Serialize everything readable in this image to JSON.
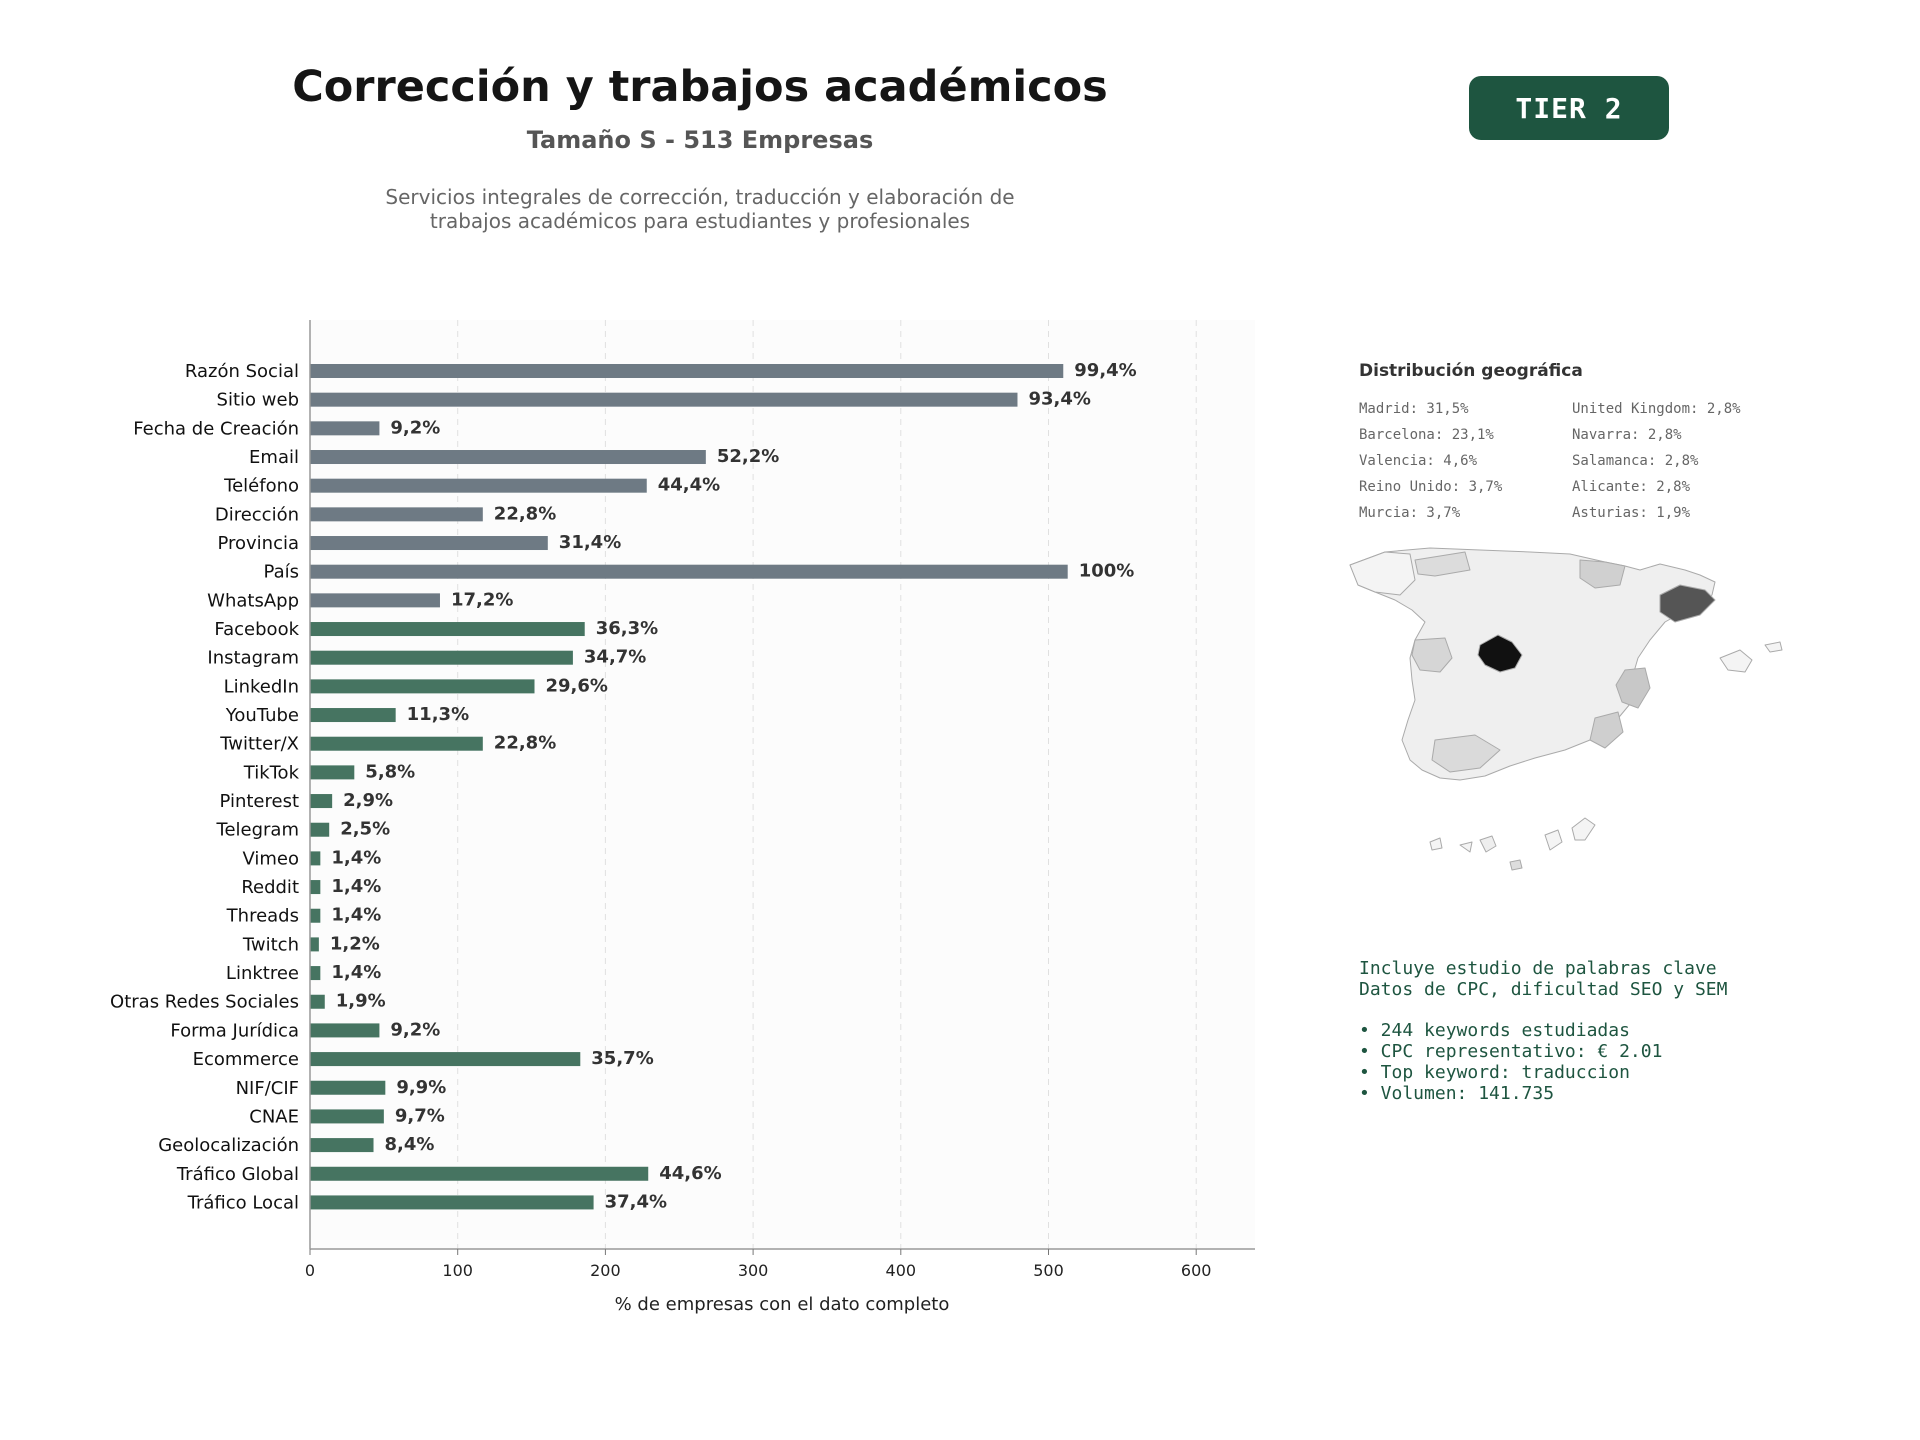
{
  "header": {
    "title": "Corrección y trabajos académicos",
    "subtitle": "Tamaño S - 513 Empresas",
    "description_line1": "Servicios integrales de corrección, traducción y elaboración de",
    "description_line2": "trabajos académicos para estudiantes y profesionales",
    "tier_label": "TIER 2"
  },
  "chart_data": {
    "type": "bar",
    "orientation": "horizontal",
    "xlabel": "% de empresas con el dato completo",
    "xlim": [
      0,
      640
    ],
    "xticks": [
      0,
      100,
      200,
      300,
      400,
      500,
      600
    ],
    "grid": "vertical dashed",
    "colors": {
      "contact": "#6e7a84",
      "digital": "#467461"
    },
    "categories": [
      "Razón Social",
      "Sitio web",
      "Fecha de Creación",
      "Email",
      "Teléfono",
      "Dirección",
      "Provincia",
      "País",
      "WhatsApp",
      "Facebook",
      "Instagram",
      "LinkedIn",
      "YouTube",
      "Twitter/X",
      "TikTok",
      "Pinterest",
      "Telegram",
      "Vimeo",
      "Reddit",
      "Threads",
      "Twitch",
      "Linktree",
      "Otras Redes Sociales",
      "Forma Jurídica",
      "Ecommerce",
      "NIF/CIF",
      "CNAE",
      "Geolocalización",
      "Tráfico Global",
      "Tráfico Local"
    ],
    "values": [
      510,
      479,
      47,
      268,
      228,
      117,
      161,
      513,
      88,
      186,
      178,
      152,
      58,
      117,
      30,
      15,
      13,
      7,
      7,
      7,
      6,
      7,
      10,
      47,
      183,
      51,
      50,
      43,
      229,
      192
    ],
    "labels": [
      "99,4%",
      "93,4%",
      "9,2%",
      "52,2%",
      "44,4%",
      "22,8%",
      "31,4%",
      "100%",
      "17,2%",
      "36,3%",
      "34,7%",
      "29,6%",
      "11,3%",
      "22,8%",
      "5,8%",
      "2,9%",
      "2,5%",
      "1,4%",
      "1,4%",
      "1,4%",
      "1,2%",
      "1,4%",
      "1,9%",
      "9,2%",
      "35,7%",
      "9,9%",
      "9,7%",
      "8,4%",
      "44,6%",
      "37,4%"
    ],
    "groups": [
      "contact",
      "contact",
      "contact",
      "contact",
      "contact",
      "contact",
      "contact",
      "contact",
      "contact",
      "digital",
      "digital",
      "digital",
      "digital",
      "digital",
      "digital",
      "digital",
      "digital",
      "digital",
      "digital",
      "digital",
      "digital",
      "digital",
      "digital",
      "digital",
      "digital",
      "digital",
      "digital",
      "digital",
      "digital",
      "digital"
    ]
  },
  "geo": {
    "title": "Distribución geográfica",
    "col1": [
      "Madrid: 31,5%",
      "Barcelona: 23,1%",
      "Valencia: 4,6%",
      "Reino Unido: 3,7%",
      "Murcia: 3,7%"
    ],
    "col2": [
      "United Kingdom: 2,8%",
      "Navarra: 2,8%",
      "Salamanca: 2,8%",
      "Alicante: 2,8%",
      "Asturias: 1,9%"
    ]
  },
  "keywords": {
    "line1": "Incluye estudio de palabras clave",
    "line2": "Datos de CPC, dificultad SEO y SEM",
    "items": [
      "• 244 keywords estudiadas",
      "• CPC representativo: € 2.01",
      "• Top keyword: traduccion",
      "• Volumen: 141.735"
    ]
  }
}
